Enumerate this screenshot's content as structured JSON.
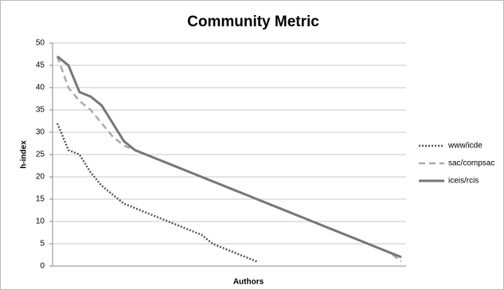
{
  "chart_data": {
    "type": "line",
    "title": "Community Metric",
    "x_label": "Authors",
    "y_label": "h-index",
    "categories": [
      null,
      null,
      null,
      null,
      null,
      null,
      null,
      null,
      null,
      null,
      null,
      null,
      null,
      null,
      null,
      null,
      null,
      null,
      null,
      null,
      null,
      null,
      null,
      null,
      null,
      null,
      null,
      null,
      null,
      null,
      null,
      null
    ],
    "series": [
      {
        "name": "www/icde",
        "color": "#555555",
        "style": "dotted",
        "values": [
          32,
          26,
          25,
          21,
          18,
          16,
          14,
          13,
          12,
          11,
          10,
          9,
          8,
          7,
          5,
          4,
          3,
          2,
          1,
          null,
          null,
          null,
          null,
          null,
          null,
          null,
          null,
          null,
          null,
          null,
          null,
          null
        ]
      },
      {
        "name": "sac/compsac",
        "color": "#aaaaaa",
        "style": "dashed",
        "values": [
          47,
          40,
          37,
          35,
          32,
          29,
          27,
          26,
          25,
          24,
          23,
          22,
          21,
          20,
          19,
          18,
          17,
          16,
          15,
          14,
          13,
          12,
          11,
          10,
          9,
          8,
          7,
          6,
          5,
          4,
          3,
          1
        ]
      },
      {
        "name": "iceis/rcis",
        "color": "#777777",
        "style": "solid",
        "values": [
          47,
          45,
          39,
          38,
          36,
          32,
          28,
          26,
          25,
          24,
          23,
          22,
          21,
          20,
          19,
          18,
          17,
          16,
          15,
          14,
          13,
          12,
          11,
          10,
          9,
          8,
          7,
          6,
          5,
          4,
          3,
          2
        ]
      }
    ],
    "ylim": [
      0,
      50
    ],
    "yticks": [
      0,
      5,
      10,
      15,
      20,
      25,
      30,
      35,
      40,
      45,
      50
    ],
    "grid": true,
    "legend": "right"
  }
}
